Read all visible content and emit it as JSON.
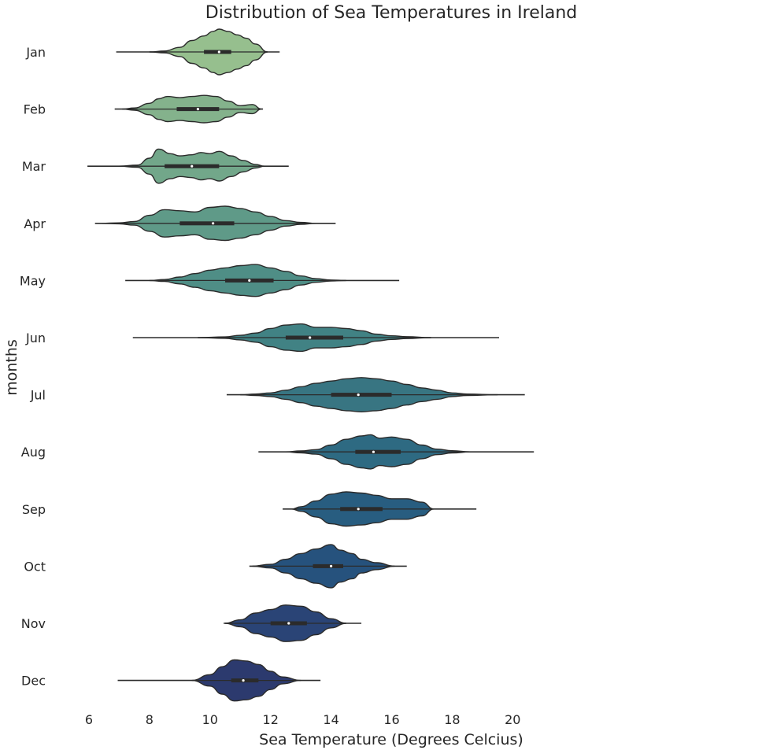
{
  "chart_data": {
    "type": "violin",
    "title": "Distribution of Sea Temperatures in Ireland",
    "xlabel": "Sea Temperature (Degrees Celcius)",
    "ylabel": "months",
    "xlim": [
      5.2,
      21
    ],
    "xticks": [
      6,
      8,
      10,
      12,
      14,
      16,
      18,
      20
    ],
    "categories": [
      "Jan",
      "Feb",
      "Mar",
      "Apr",
      "May",
      "Jun",
      "Jul",
      "Aug",
      "Sep",
      "Oct",
      "Nov",
      "Dec"
    ],
    "colors": [
      "#96bf8e",
      "#84b28c",
      "#72a78a",
      "#5f9a88",
      "#4f8e86",
      "#418284",
      "#387582",
      "#2e6a82",
      "#285d80",
      "#26527d",
      "#2a4476",
      "#2c3a6e"
    ],
    "series": [
      {
        "name": "Jan",
        "min": 6.9,
        "q1": 9.8,
        "median": 10.3,
        "q3": 10.7,
        "max": 12.3,
        "bulk_lo": 8.0,
        "bulk_hi": 11.9,
        "profile": [
          [
            8.0,
            0
          ],
          [
            8.5,
            0.04
          ],
          [
            9.0,
            0.2
          ],
          [
            9.4,
            0.5
          ],
          [
            9.8,
            0.7
          ],
          [
            10.1,
            0.9
          ],
          [
            10.3,
            1.0
          ],
          [
            10.6,
            0.9
          ],
          [
            10.9,
            0.75
          ],
          [
            11.2,
            0.6
          ],
          [
            11.5,
            0.35
          ],
          [
            11.9,
            0
          ]
        ]
      },
      {
        "name": "Feb",
        "min": 6.85,
        "q1": 8.9,
        "median": 9.6,
        "q3": 10.3,
        "max": 11.75,
        "bulk_lo": 7.1,
        "bulk_hi": 11.7,
        "profile": [
          [
            7.1,
            0
          ],
          [
            7.5,
            0.05
          ],
          [
            8.0,
            0.25
          ],
          [
            8.3,
            0.45
          ],
          [
            8.6,
            0.55
          ],
          [
            9.0,
            0.5
          ],
          [
            9.4,
            0.55
          ],
          [
            9.8,
            0.6
          ],
          [
            10.2,
            0.55
          ],
          [
            10.6,
            0.35
          ],
          [
            11.0,
            0.15
          ],
          [
            11.4,
            0.2
          ],
          [
            11.7,
            0
          ]
        ]
      },
      {
        "name": "Mar",
        "min": 5.95,
        "q1": 8.5,
        "median": 9.4,
        "q3": 10.3,
        "max": 12.6,
        "bulk_lo": 7.0,
        "bulk_hi": 11.8,
        "profile": [
          [
            7.0,
            0
          ],
          [
            7.6,
            0.05
          ],
          [
            8.0,
            0.35
          ],
          [
            8.3,
            0.75
          ],
          [
            8.7,
            0.55
          ],
          [
            9.0,
            0.45
          ],
          [
            9.4,
            0.5
          ],
          [
            9.7,
            0.6
          ],
          [
            10.0,
            0.55
          ],
          [
            10.3,
            0.65
          ],
          [
            10.7,
            0.45
          ],
          [
            11.1,
            0.25
          ],
          [
            11.5,
            0.08
          ],
          [
            11.8,
            0
          ]
        ]
      },
      {
        "name": "Apr",
        "min": 6.2,
        "q1": 9.0,
        "median": 10.1,
        "q3": 10.8,
        "max": 14.15,
        "bulk_lo": 6.4,
        "bulk_hi": 13.5,
        "profile": [
          [
            6.4,
            0
          ],
          [
            7.0,
            0.02
          ],
          [
            7.5,
            0.08
          ],
          [
            8.0,
            0.35
          ],
          [
            8.5,
            0.6
          ],
          [
            9.0,
            0.55
          ],
          [
            9.5,
            0.5
          ],
          [
            10.0,
            0.7
          ],
          [
            10.5,
            0.75
          ],
          [
            11.0,
            0.65
          ],
          [
            11.5,
            0.5
          ],
          [
            12.0,
            0.3
          ],
          [
            12.5,
            0.12
          ],
          [
            13.0,
            0.04
          ],
          [
            13.5,
            0
          ]
        ]
      },
      {
        "name": "May",
        "min": 7.2,
        "q1": 10.5,
        "median": 11.3,
        "q3": 12.1,
        "max": 16.25,
        "bulk_lo": 8.0,
        "bulk_hi": 14.5,
        "profile": [
          [
            8.0,
            0
          ],
          [
            8.5,
            0.04
          ],
          [
            9.0,
            0.15
          ],
          [
            9.5,
            0.3
          ],
          [
            10.0,
            0.45
          ],
          [
            10.5,
            0.55
          ],
          [
            11.0,
            0.65
          ],
          [
            11.5,
            0.7
          ],
          [
            12.0,
            0.55
          ],
          [
            12.5,
            0.4
          ],
          [
            13.0,
            0.2
          ],
          [
            13.5,
            0.08
          ],
          [
            14.0,
            0.02
          ],
          [
            14.5,
            0
          ]
        ]
      },
      {
        "name": "Jun",
        "min": 7.45,
        "q1": 12.5,
        "median": 13.3,
        "q3": 14.4,
        "max": 19.55,
        "bulk_lo": 9.6,
        "bulk_hi": 17.3,
        "profile": [
          [
            9.6,
            0
          ],
          [
            10.5,
            0.03
          ],
          [
            11.0,
            0.1
          ],
          [
            11.5,
            0.2
          ],
          [
            12.0,
            0.4
          ],
          [
            12.5,
            0.55
          ],
          [
            13.0,
            0.6
          ],
          [
            13.5,
            0.45
          ],
          [
            14.0,
            0.45
          ],
          [
            14.5,
            0.4
          ],
          [
            15.0,
            0.3
          ],
          [
            15.5,
            0.15
          ],
          [
            16.0,
            0.08
          ],
          [
            16.5,
            0.04
          ],
          [
            17.3,
            0
          ]
        ]
      },
      {
        "name": "Jul",
        "min": 10.55,
        "q1": 14.0,
        "median": 14.9,
        "q3": 16.0,
        "max": 20.4,
        "bulk_lo": 11.0,
        "bulk_hi": 19.5,
        "profile": [
          [
            11.0,
            0
          ],
          [
            11.5,
            0.03
          ],
          [
            12.0,
            0.08
          ],
          [
            12.5,
            0.2
          ],
          [
            13.0,
            0.35
          ],
          [
            13.5,
            0.5
          ],
          [
            14.0,
            0.6
          ],
          [
            14.5,
            0.7
          ],
          [
            15.0,
            0.75
          ],
          [
            15.5,
            0.7
          ],
          [
            16.0,
            0.6
          ],
          [
            16.5,
            0.45
          ],
          [
            17.0,
            0.3
          ],
          [
            17.5,
            0.2
          ],
          [
            18.0,
            0.08
          ],
          [
            18.5,
            0.03
          ],
          [
            19.5,
            0
          ]
        ]
      },
      {
        "name": "Aug",
        "min": 11.6,
        "q1": 14.8,
        "median": 15.4,
        "q3": 16.3,
        "max": 20.7,
        "bulk_lo": 12.5,
        "bulk_hi": 18.6,
        "profile": [
          [
            12.5,
            0
          ],
          [
            13.0,
            0.04
          ],
          [
            13.5,
            0.1
          ],
          [
            14.0,
            0.3
          ],
          [
            14.5,
            0.55
          ],
          [
            15.0,
            0.7
          ],
          [
            15.3,
            0.75
          ],
          [
            15.6,
            0.6
          ],
          [
            16.0,
            0.65
          ],
          [
            16.5,
            0.55
          ],
          [
            17.0,
            0.3
          ],
          [
            17.5,
            0.12
          ],
          [
            18.0,
            0.05
          ],
          [
            18.6,
            0
          ]
        ]
      },
      {
        "name": "Sep",
        "min": 12.4,
        "q1": 14.3,
        "median": 14.9,
        "q3": 15.7,
        "max": 18.8,
        "bulk_lo": 12.7,
        "bulk_hi": 17.4,
        "profile": [
          [
            12.7,
            0
          ],
          [
            13.0,
            0.1
          ],
          [
            13.5,
            0.35
          ],
          [
            14.0,
            0.65
          ],
          [
            14.5,
            0.75
          ],
          [
            15.0,
            0.7
          ],
          [
            15.5,
            0.6
          ],
          [
            16.0,
            0.45
          ],
          [
            16.5,
            0.45
          ],
          [
            17.0,
            0.3
          ],
          [
            17.4,
            0
          ]
        ]
      },
      {
        "name": "Oct",
        "min": 11.3,
        "q1": 13.4,
        "median": 14.0,
        "q3": 14.4,
        "max": 16.5,
        "bulk_lo": 11.4,
        "bulk_hi": 16.1,
        "profile": [
          [
            11.4,
            0
          ],
          [
            12.0,
            0.08
          ],
          [
            12.5,
            0.3
          ],
          [
            13.0,
            0.55
          ],
          [
            13.5,
            0.75
          ],
          [
            14.0,
            0.95
          ],
          [
            14.3,
            0.7
          ],
          [
            14.7,
            0.55
          ],
          [
            15.0,
            0.3
          ],
          [
            15.5,
            0.15
          ],
          [
            16.1,
            0
          ]
        ]
      },
      {
        "name": "Nov",
        "min": 10.45,
        "q1": 12.0,
        "median": 12.6,
        "q3": 13.2,
        "max": 15.0,
        "bulk_lo": 10.5,
        "bulk_hi": 14.5,
        "profile": [
          [
            10.5,
            0
          ],
          [
            11.0,
            0.15
          ],
          [
            11.5,
            0.45
          ],
          [
            12.0,
            0.6
          ],
          [
            12.5,
            0.8
          ],
          [
            13.0,
            0.75
          ],
          [
            13.5,
            0.5
          ],
          [
            14.0,
            0.2
          ],
          [
            14.5,
            0
          ]
        ]
      },
      {
        "name": "Dec",
        "min": 6.95,
        "q1": 10.7,
        "median": 11.1,
        "q3": 11.6,
        "max": 13.65,
        "bulk_lo": 9.4,
        "bulk_hi": 13.0,
        "profile": [
          [
            9.4,
            0
          ],
          [
            10.0,
            0.25
          ],
          [
            10.4,
            0.6
          ],
          [
            10.8,
            0.9
          ],
          [
            11.2,
            0.85
          ],
          [
            11.6,
            0.7
          ],
          [
            12.0,
            0.4
          ],
          [
            12.4,
            0.15
          ],
          [
            13.0,
            0
          ]
        ]
      }
    ]
  }
}
